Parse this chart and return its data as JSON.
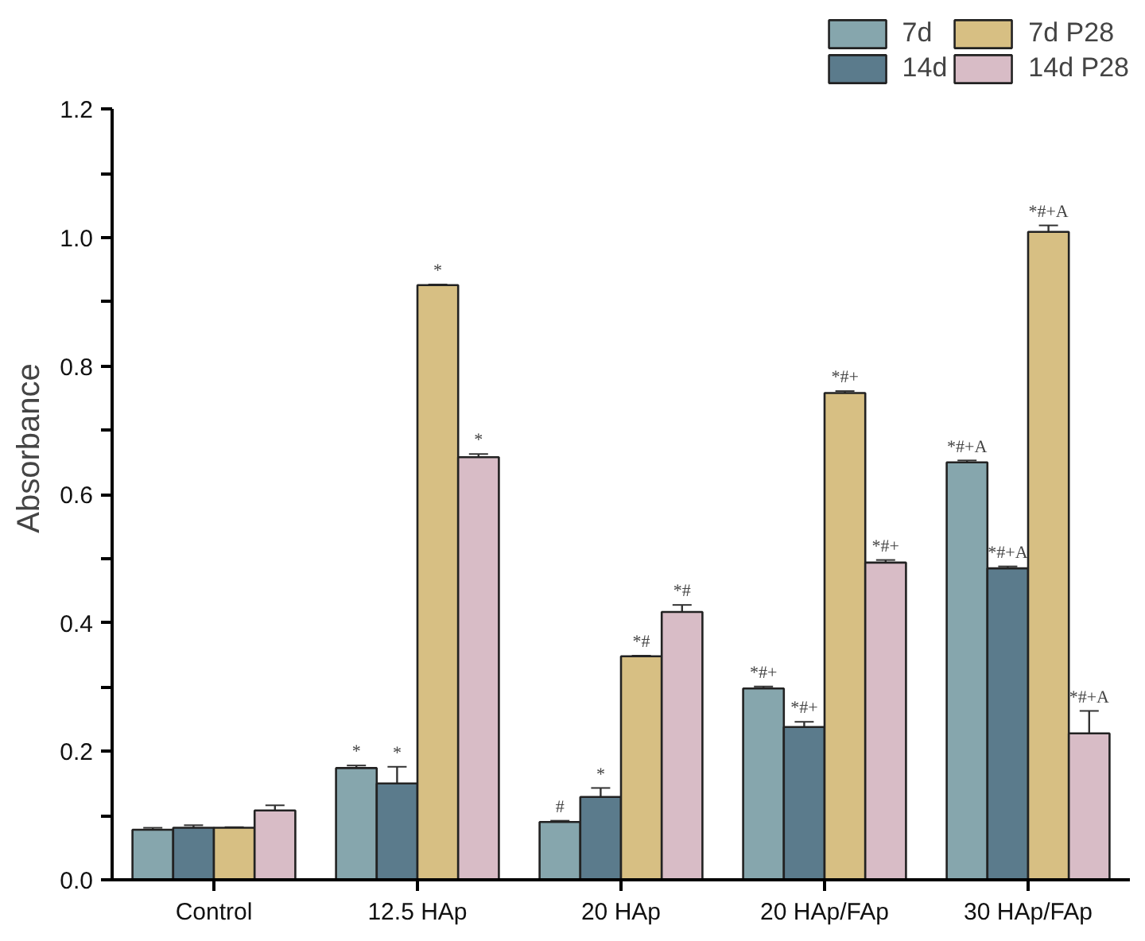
{
  "chart_data": {
    "type": "bar",
    "ylabel": "Absorbance",
    "categories": [
      "Control",
      "12.5 HAp",
      "20 HAp",
      "20 HAp/FAp",
      "30 HAp/FAp"
    ],
    "series": [
      {
        "name": "7d",
        "color": "#86a6ad",
        "values": [
          0.078,
          0.174,
          0.09,
          0.298,
          0.65
        ],
        "errors": [
          0.003,
          0.004,
          0.002,
          0.003,
          0.003
        ],
        "value_labels": [
          null,
          "*",
          "#",
          "*#+",
          "*#+A"
        ]
      },
      {
        "name": "14d",
        "color": "#5b7b8c",
        "values": [
          0.081,
          0.15,
          0.129,
          0.238,
          0.485
        ],
        "errors": [
          0.004,
          0.026,
          0.014,
          0.008,
          0.003
        ],
        "value_labels": [
          null,
          "*",
          "*",
          "*#+",
          "*#+A"
        ]
      },
      {
        "name": "7d P28",
        "color": "#d7bf83",
        "values": [
          0.081,
          0.926,
          0.348,
          0.758,
          1.009
        ],
        "errors": [
          0.001,
          0.001,
          0.001,
          0.003,
          0.01
        ],
        "value_labels": [
          null,
          "*",
          "*#",
          "*#+",
          "*#+A"
        ]
      },
      {
        "name": "14d P28",
        "color": "#d8bcc6",
        "values": [
          0.108,
          0.658,
          0.417,
          0.494,
          0.228
        ],
        "errors": [
          0.008,
          0.005,
          0.011,
          0.004,
          0.035
        ],
        "value_labels": [
          null,
          "*",
          "*#",
          "*#+",
          "*#+A"
        ]
      }
    ],
    "ylim": [
      0,
      1.2
    ],
    "yticks": [
      {
        "value": 0,
        "label": "0.0"
      },
      {
        "value": 0.1,
        "label": null
      },
      0.2,
      {
        "value": 0.3,
        "label": null
      },
      0.4,
      {
        "value": 0.5,
        "label": null
      },
      0.6,
      {
        "value": 0.7,
        "label": null
      },
      0.8,
      {
        "value": 0.9,
        "label": null
      },
      {
        "value": 1,
        "label": "1.0"
      },
      {
        "value": 1.1,
        "label": null
      },
      1.2
    ],
    "grid": false,
    "legend": "top right"
  }
}
